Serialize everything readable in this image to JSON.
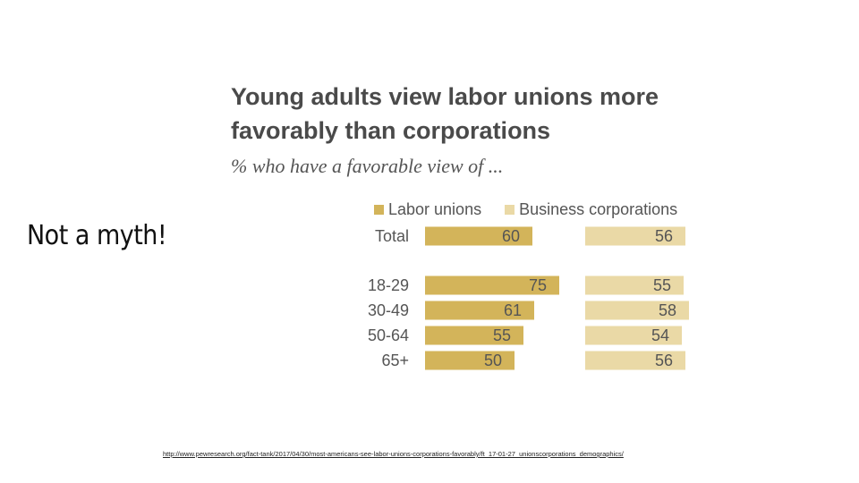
{
  "slide": {
    "title": "Not a myth!",
    "source_link": "http://www.pewresearch.org/fact-tank/2017/04/30/most-americans-see-labor-unions-corporations-favorably/ft_17-01-27_unionscorporations_demographics/"
  },
  "chart_data": {
    "type": "bar",
    "title_lines": [
      "Young adults view labor unions more",
      "favorably than corporations"
    ],
    "subtitle": "% who have a favorable view of ...",
    "categories": [
      "Total",
      "18-29",
      "30-49",
      "50-64",
      "65+"
    ],
    "series": [
      {
        "name": "Labor unions",
        "values": [
          60,
          75,
          61,
          55,
          50
        ],
        "color": "#d3b45a"
      },
      {
        "name": "Business corporations",
        "values": [
          56,
          55,
          58,
          54,
          56
        ],
        "color": "#ead9a6"
      }
    ],
    "xlim": [
      0,
      100
    ],
    "legend_position": "top",
    "grid": false
  }
}
